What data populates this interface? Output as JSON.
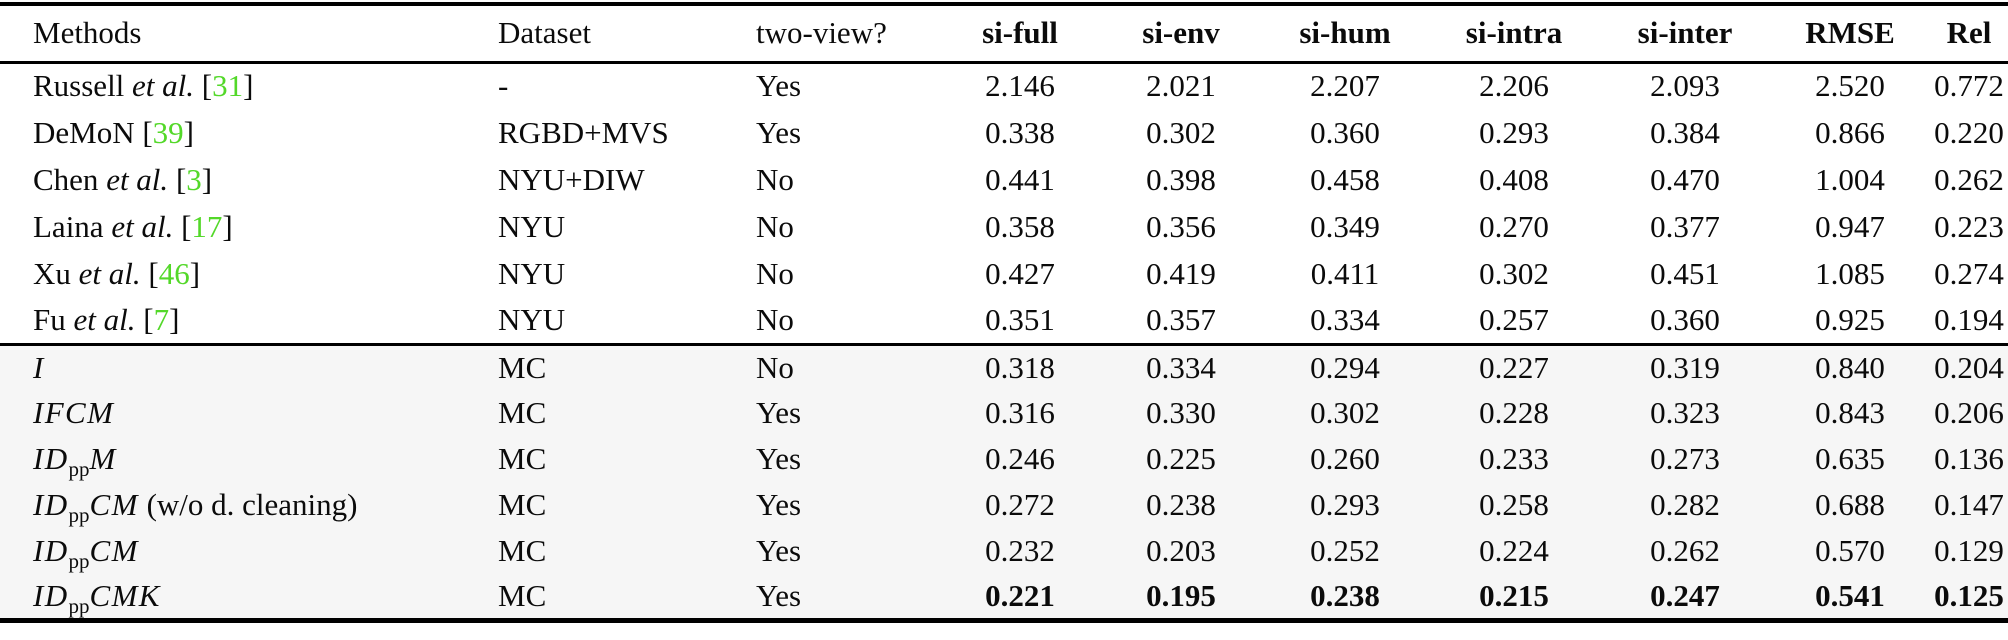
{
  "colors": {
    "citation": "#53d829",
    "section2_bg": "#f6f6f6",
    "border": "#000000"
  },
  "table": {
    "headers": [
      {
        "label": "Methods",
        "key": "methods",
        "align": "left",
        "bold": false
      },
      {
        "label": "Dataset",
        "key": "dataset",
        "align": "left",
        "bold": false
      },
      {
        "label": "two-view?",
        "key": "two-view",
        "align": "left",
        "bold": false
      },
      {
        "label": "si-full",
        "key": "si-full",
        "align": "center",
        "bold": true
      },
      {
        "label": "si-env",
        "key": "si-env",
        "align": "center",
        "bold": true
      },
      {
        "label": "si-hum",
        "key": "si-hum",
        "align": "center",
        "bold": true
      },
      {
        "label": "si-intra",
        "key": "si-intra",
        "align": "center",
        "bold": true
      },
      {
        "label": "si-inter",
        "key": "si-inter",
        "align": "center",
        "bold": true
      },
      {
        "label": "RMSE",
        "key": "rmse",
        "align": "center",
        "bold": true
      },
      {
        "label": "Rel",
        "key": "rel",
        "align": "center",
        "bold": true
      }
    ],
    "sections": [
      {
        "name": "prior-methods",
        "rows": [
          {
            "method": [
              {
                "t": "Russell ",
                "s": "roman"
              },
              {
                "t": "et al.",
                "s": "italic"
              },
              {
                "t": " [",
                "s": "roman"
              },
              {
                "t": "31",
                "s": "cite"
              },
              {
                "t": "]",
                "s": "roman"
              }
            ],
            "dataset": "-",
            "two_view": "Yes",
            "values": [
              "2.146",
              "2.021",
              "2.207",
              "2.206",
              "2.093",
              "2.520",
              "0.772"
            ],
            "bold": false
          },
          {
            "method": [
              {
                "t": "DeMoN [",
                "s": "roman"
              },
              {
                "t": "39",
                "s": "cite"
              },
              {
                "t": "]",
                "s": "roman"
              }
            ],
            "dataset": "RGBD+MVS",
            "two_view": "Yes",
            "values": [
              "0.338",
              "0.302",
              "0.360",
              "0.293",
              "0.384",
              "0.866",
              "0.220"
            ],
            "bold": false
          },
          {
            "method": [
              {
                "t": "Chen ",
                "s": "roman"
              },
              {
                "t": "et al.",
                "s": "italic"
              },
              {
                "t": " [",
                "s": "roman"
              },
              {
                "t": "3",
                "s": "cite"
              },
              {
                "t": "]",
                "s": "roman"
              }
            ],
            "dataset": "NYU+DIW",
            "two_view": "No",
            "values": [
              "0.441",
              "0.398",
              "0.458",
              "0.408",
              "0.470",
              "1.004",
              "0.262"
            ],
            "bold": false
          },
          {
            "method": [
              {
                "t": "Laina ",
                "s": "roman"
              },
              {
                "t": "et al.",
                "s": "italic"
              },
              {
                "t": " [",
                "s": "roman"
              },
              {
                "t": "17",
                "s": "cite"
              },
              {
                "t": "]",
                "s": "roman"
              }
            ],
            "dataset": "NYU",
            "two_view": "No",
            "values": [
              "0.358",
              "0.356",
              "0.349",
              "0.270",
              "0.377",
              "0.947",
              "0.223"
            ],
            "bold": false
          },
          {
            "method": [
              {
                "t": "Xu ",
                "s": "roman"
              },
              {
                "t": "et al.",
                "s": "italic"
              },
              {
                "t": " [",
                "s": "roman"
              },
              {
                "t": "46",
                "s": "cite"
              },
              {
                "t": "]",
                "s": "roman"
              }
            ],
            "dataset": "NYU",
            "two_view": "No",
            "values": [
              "0.427",
              "0.419",
              "0.411",
              "0.302",
              "0.451",
              "1.085",
              "0.274"
            ],
            "bold": false
          },
          {
            "method": [
              {
                "t": "Fu ",
                "s": "roman"
              },
              {
                "t": "et al.",
                "s": "italic"
              },
              {
                "t": " [",
                "s": "roman"
              },
              {
                "t": "7",
                "s": "cite"
              },
              {
                "t": "]",
                "s": "roman"
              }
            ],
            "dataset": "NYU",
            "two_view": "No",
            "values": [
              "0.351",
              "0.357",
              "0.334",
              "0.257",
              "0.360",
              "0.925",
              "0.194"
            ],
            "bold": false
          }
        ]
      },
      {
        "name": "ablation-methods",
        "rows": [
          {
            "method": [
              {
                "t": "I",
                "s": "math"
              }
            ],
            "dataset": "MC",
            "two_view": "No",
            "values": [
              "0.318",
              "0.334",
              "0.294",
              "0.227",
              "0.319",
              "0.840",
              "0.204"
            ],
            "bold": false
          },
          {
            "method": [
              {
                "t": "IFCM",
                "s": "math"
              }
            ],
            "dataset": "MC",
            "two_view": "Yes",
            "values": [
              "0.316",
              "0.330",
              "0.302",
              "0.228",
              "0.323",
              "0.843",
              "0.206"
            ],
            "bold": false
          },
          {
            "method": [
              {
                "t": "ID",
                "s": "math"
              },
              {
                "t": "pp",
                "s": "sub"
              },
              {
                "t": "M",
                "s": "math"
              }
            ],
            "dataset": "MC",
            "two_view": "Yes",
            "values": [
              "0.246",
              "0.225",
              "0.260",
              "0.233",
              "0.273",
              "0.635",
              "0.136"
            ],
            "bold": false
          },
          {
            "method": [
              {
                "t": "ID",
                "s": "math"
              },
              {
                "t": "pp",
                "s": "sub"
              },
              {
                "t": "CM",
                "s": "math"
              },
              {
                "t": " (w/o d. cleaning)",
                "s": "roman"
              }
            ],
            "dataset": "MC",
            "two_view": "Yes",
            "values": [
              "0.272",
              "0.238",
              "0.293",
              "0.258",
              "0.282",
              "0.688",
              "0.147"
            ],
            "bold": false
          },
          {
            "method": [
              {
                "t": "ID",
                "s": "math"
              },
              {
                "t": "pp",
                "s": "sub"
              },
              {
                "t": "CM",
                "s": "math"
              }
            ],
            "dataset": "MC",
            "two_view": "Yes",
            "values": [
              "0.232",
              "0.203",
              "0.252",
              "0.224",
              "0.262",
              "0.570",
              "0.129"
            ],
            "bold": false
          },
          {
            "method": [
              {
                "t": "ID",
                "s": "math"
              },
              {
                "t": "pp",
                "s": "sub"
              },
              {
                "t": "CMK",
                "s": "math"
              }
            ],
            "dataset": "MC",
            "two_view": "Yes",
            "values": [
              "0.221",
              "0.195",
              "0.238",
              "0.215",
              "0.247",
              "0.541",
              "0.125"
            ],
            "bold": true
          }
        ]
      }
    ]
  }
}
